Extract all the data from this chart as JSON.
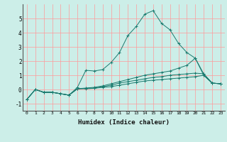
{
  "xlabel": "Humidex (Indice chaleur)",
  "background_color": "#cceee8",
  "grid_color": "#ff9999",
  "line_color": "#1a7a6e",
  "xlim": [
    -0.5,
    23.5
  ],
  "ylim": [
    -1.5,
    6.0
  ],
  "yticks": [
    -1,
    0,
    1,
    2,
    3,
    4,
    5
  ],
  "xticks": [
    0,
    1,
    2,
    3,
    4,
    5,
    6,
    7,
    8,
    9,
    10,
    11,
    12,
    13,
    14,
    15,
    16,
    17,
    18,
    19,
    20,
    21,
    22,
    23
  ],
  "series": [
    {
      "x": [
        0,
        1,
        2,
        3,
        4,
        5,
        6,
        7,
        8,
        9,
        10,
        11,
        12,
        13,
        14,
        15,
        16,
        17,
        18,
        19,
        20,
        21,
        22,
        23
      ],
      "y": [
        -0.7,
        0.0,
        -0.2,
        -0.2,
        -0.3,
        -0.4,
        0.15,
        1.35,
        1.3,
        1.4,
        1.9,
        2.6,
        3.8,
        4.45,
        5.3,
        5.55,
        4.65,
        4.2,
        3.25,
        2.6,
        2.2,
        1.0,
        0.45,
        0.4
      ]
    },
    {
      "x": [
        0,
        1,
        2,
        3,
        4,
        5,
        6,
        7,
        8,
        9,
        10,
        11,
        12,
        13,
        14,
        15,
        16,
        17,
        18,
        19,
        20,
        21,
        22,
        23
      ],
      "y": [
        -0.7,
        0.0,
        -0.2,
        -0.2,
        -0.3,
        -0.4,
        0.05,
        0.1,
        0.15,
        0.25,
        0.4,
        0.55,
        0.7,
        0.85,
        1.0,
        1.1,
        1.2,
        1.3,
        1.5,
        1.7,
        2.2,
        1.1,
        0.45,
        0.4
      ]
    },
    {
      "x": [
        0,
        1,
        2,
        3,
        4,
        5,
        6,
        7,
        8,
        9,
        10,
        11,
        12,
        13,
        14,
        15,
        16,
        17,
        18,
        19,
        20,
        21,
        22,
        23
      ],
      "y": [
        -0.7,
        0.0,
        -0.2,
        -0.2,
        -0.3,
        -0.4,
        0.05,
        0.08,
        0.1,
        0.2,
        0.3,
        0.45,
        0.55,
        0.65,
        0.75,
        0.85,
        0.9,
        1.0,
        1.05,
        1.1,
        1.15,
        1.1,
        0.45,
        0.4
      ]
    },
    {
      "x": [
        0,
        1,
        2,
        3,
        4,
        5,
        6,
        7,
        8,
        9,
        10,
        11,
        12,
        13,
        14,
        15,
        16,
        17,
        18,
        19,
        20,
        21,
        22,
        23
      ],
      "y": [
        -0.7,
        0.0,
        -0.2,
        -0.2,
        -0.3,
        -0.4,
        0.05,
        0.05,
        0.08,
        0.15,
        0.2,
        0.3,
        0.4,
        0.5,
        0.6,
        0.65,
        0.7,
        0.75,
        0.8,
        0.85,
        0.9,
        1.0,
        0.45,
        0.4
      ]
    }
  ]
}
